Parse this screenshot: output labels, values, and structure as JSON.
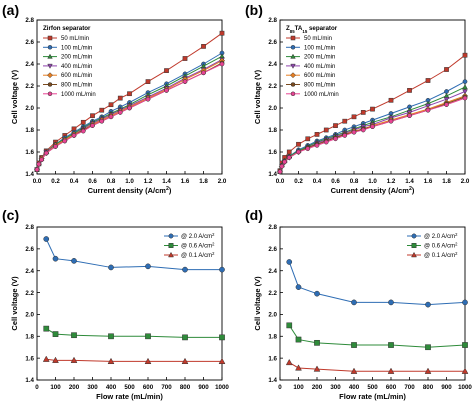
{
  "chart_data": [
    {
      "panel": "(a)",
      "type": "line",
      "ylabel": "Cell voltage (V)",
      "xlabel": "Current density (A/cm²)",
      "xlim": [
        0,
        2.0
      ],
      "ylim": [
        1.4,
        2.8
      ],
      "xticks": [
        "0.0",
        "0.2",
        "0.4",
        "0.6",
        "0.8",
        "1.0",
        "1.2",
        "1.4",
        "1.6",
        "1.8",
        "2.0"
      ],
      "yticks": [
        "1.4",
        "1.6",
        "1.8",
        "2.0",
        "2.2",
        "2.4",
        "2.6",
        "2.8"
      ],
      "legend_title": "Zirfon separator",
      "legend_placement": "top-left",
      "x": [
        0.0,
        0.02,
        0.05,
        0.1,
        0.2,
        0.3,
        0.4,
        0.5,
        0.6,
        0.7,
        0.8,
        0.9,
        1.0,
        1.2,
        1.4,
        1.6,
        1.8,
        2.0
      ],
      "series": [
        {
          "name": "50 mL/min",
          "color": "#c0392b",
          "marker": "square",
          "values": [
            1.44,
            1.5,
            1.55,
            1.61,
            1.69,
            1.75,
            1.81,
            1.87,
            1.93,
            1.98,
            2.03,
            2.09,
            2.13,
            2.24,
            2.34,
            2.45,
            2.56,
            2.68
          ]
        },
        {
          "name": "100 mL/min",
          "color": "#2e6db4",
          "marker": "circle",
          "values": [
            1.44,
            1.49,
            1.54,
            1.6,
            1.67,
            1.73,
            1.78,
            1.83,
            1.88,
            1.92,
            1.97,
            2.01,
            2.05,
            2.14,
            2.22,
            2.31,
            2.4,
            2.5
          ]
        },
        {
          "name": "200 mL/min",
          "color": "#2e8b3a",
          "marker": "triangle",
          "values": [
            1.44,
            1.49,
            1.54,
            1.6,
            1.67,
            1.72,
            1.77,
            1.82,
            1.87,
            1.91,
            1.95,
            1.99,
            2.03,
            2.12,
            2.2,
            2.29,
            2.38,
            2.47
          ]
        },
        {
          "name": "400 mL/min",
          "color": "#8e44ad",
          "marker": "triangle-down",
          "values": [
            1.44,
            1.49,
            1.54,
            1.6,
            1.66,
            1.71,
            1.76,
            1.81,
            1.86,
            1.9,
            1.94,
            1.98,
            2.02,
            2.1,
            2.18,
            2.27,
            2.35,
            2.44
          ]
        },
        {
          "name": "600 mL/min",
          "color": "#e67e22",
          "marker": "diamond",
          "values": [
            1.44,
            1.49,
            1.54,
            1.59,
            1.66,
            1.71,
            1.76,
            1.8,
            1.85,
            1.89,
            1.93,
            1.97,
            2.01,
            2.09,
            2.17,
            2.26,
            2.34,
            2.43
          ]
        },
        {
          "name": "800 mL/min",
          "color": "#7a4a1e",
          "marker": "circle",
          "values": [
            1.44,
            1.49,
            1.53,
            1.59,
            1.65,
            1.7,
            1.75,
            1.8,
            1.84,
            1.88,
            1.92,
            1.96,
            2.0,
            2.08,
            2.16,
            2.24,
            2.32,
            2.41
          ]
        },
        {
          "name": "1000 mL/min",
          "color": "#e84393",
          "marker": "circle",
          "values": [
            1.44,
            1.49,
            1.53,
            1.59,
            1.65,
            1.7,
            1.75,
            1.79,
            1.84,
            1.88,
            1.92,
            1.96,
            2.0,
            2.08,
            2.16,
            2.24,
            2.32,
            2.4
          ]
        }
      ]
    },
    {
      "panel": "(b)",
      "type": "line",
      "ylabel": "Cell voltage (V)",
      "xlabel": "Current density (A/cm²)",
      "xlim": [
        0,
        2.0
      ],
      "ylim": [
        1.4,
        2.8
      ],
      "xticks": [
        "0.0",
        "0.2",
        "0.4",
        "0.6",
        "0.8",
        "1.0",
        "1.2",
        "1.4",
        "1.6",
        "1.8",
        "2.0"
      ],
      "yticks": [
        "1.4",
        "1.6",
        "1.8",
        "2.0",
        "2.2",
        "2.4",
        "2.6",
        "2.8"
      ],
      "legend_title": "Z₈₅TA₁₅ separator",
      "legend_placement": "top-left",
      "x": [
        0.0,
        0.02,
        0.05,
        0.1,
        0.2,
        0.3,
        0.4,
        0.5,
        0.6,
        0.7,
        0.8,
        0.9,
        1.0,
        1.2,
        1.4,
        1.6,
        1.8,
        2.0
      ],
      "series": [
        {
          "name": "50 mL/min",
          "color": "#c0392b",
          "marker": "square",
          "values": [
            1.43,
            1.5,
            1.55,
            1.6,
            1.67,
            1.72,
            1.76,
            1.8,
            1.84,
            1.88,
            1.92,
            1.96,
            1.99,
            2.07,
            2.16,
            2.25,
            2.35,
            2.48
          ]
        },
        {
          "name": "100 mL/min",
          "color": "#2e6db4",
          "marker": "circle",
          "values": [
            1.42,
            1.48,
            1.52,
            1.56,
            1.62,
            1.66,
            1.7,
            1.73,
            1.76,
            1.8,
            1.83,
            1.86,
            1.89,
            1.95,
            2.01,
            2.07,
            2.15,
            2.24
          ]
        },
        {
          "name": "200 mL/min",
          "color": "#2e8b3a",
          "marker": "triangle",
          "values": [
            1.42,
            1.48,
            1.52,
            1.56,
            1.61,
            1.65,
            1.69,
            1.72,
            1.75,
            1.78,
            1.81,
            1.84,
            1.87,
            1.92,
            1.98,
            2.04,
            2.11,
            2.19
          ]
        },
        {
          "name": "400 mL/min",
          "color": "#8e44ad",
          "marker": "triangle-down",
          "values": [
            1.42,
            1.47,
            1.51,
            1.55,
            1.6,
            1.64,
            1.68,
            1.71,
            1.74,
            1.77,
            1.8,
            1.83,
            1.85,
            1.91,
            1.96,
            2.02,
            2.08,
            2.15
          ]
        },
        {
          "name": "600 mL/min",
          "color": "#e67e22",
          "marker": "diamond",
          "values": [
            1.42,
            1.47,
            1.51,
            1.55,
            1.6,
            1.64,
            1.67,
            1.7,
            1.73,
            1.76,
            1.79,
            1.81,
            1.84,
            1.89,
            1.94,
            1.99,
            2.05,
            2.11
          ]
        },
        {
          "name": "800 mL/min",
          "color": "#7a4a1e",
          "marker": "circle",
          "values": [
            1.42,
            1.47,
            1.51,
            1.55,
            1.6,
            1.64,
            1.67,
            1.7,
            1.73,
            1.76,
            1.78,
            1.81,
            1.83,
            1.88,
            1.93,
            1.98,
            2.04,
            2.1
          ]
        },
        {
          "name": "1000 mL/min",
          "color": "#e84393",
          "marker": "circle",
          "values": [
            1.42,
            1.47,
            1.51,
            1.55,
            1.6,
            1.63,
            1.66,
            1.69,
            1.72,
            1.75,
            1.78,
            1.8,
            1.83,
            1.88,
            1.93,
            1.98,
            2.03,
            2.09
          ]
        }
      ]
    },
    {
      "panel": "(c)",
      "type": "line",
      "ylabel": "Cell voltage (V)",
      "xlabel": "Flow rate (mL/min)",
      "xlim": [
        0,
        1000
      ],
      "ylim": [
        1.4,
        2.8
      ],
      "xticks": [
        "0",
        "100",
        "200",
        "300",
        "400",
        "500",
        "600",
        "700",
        "800",
        "900",
        "1000"
      ],
      "yticks": [
        "1.4",
        "1.6",
        "1.8",
        "2.0",
        "2.2",
        "2.4",
        "2.6",
        "2.8"
      ],
      "legend_placement": "top-right",
      "x": [
        50,
        100,
        200,
        400,
        600,
        800,
        1000
      ],
      "series": [
        {
          "name": "@ 2.0 A/cm²",
          "color": "#2e6db4",
          "marker": "circle",
          "values": [
            2.69,
            2.51,
            2.49,
            2.43,
            2.44,
            2.41,
            2.41
          ]
        },
        {
          "name": "@ 0.6 A/cm²",
          "color": "#2e8b3a",
          "marker": "square",
          "values": [
            1.87,
            1.82,
            1.81,
            1.8,
            1.8,
            1.79,
            1.79
          ]
        },
        {
          "name": "@ 0.1 A/cm²",
          "color": "#c0392b",
          "marker": "triangle",
          "values": [
            1.59,
            1.58,
            1.58,
            1.57,
            1.57,
            1.57,
            1.57
          ]
        }
      ]
    },
    {
      "panel": "(d)",
      "type": "line",
      "ylabel": "Cell voltage (V)",
      "xlabel": "Flow rate (mL/min)",
      "xlim": [
        0,
        1000
      ],
      "ylim": [
        1.4,
        2.8
      ],
      "xticks": [
        "0",
        "100",
        "200",
        "300",
        "400",
        "500",
        "600",
        "700",
        "800",
        "900",
        "1000"
      ],
      "yticks": [
        "1.4",
        "1.6",
        "1.8",
        "2.0",
        "2.2",
        "2.4",
        "2.6",
        "2.8"
      ],
      "legend_placement": "top-right",
      "x": [
        50,
        100,
        200,
        400,
        600,
        800,
        1000
      ],
      "series": [
        {
          "name": "@ 2.0 A/cm²",
          "color": "#2e6db4",
          "marker": "circle",
          "values": [
            2.48,
            2.25,
            2.19,
            2.11,
            2.11,
            2.09,
            2.11
          ]
        },
        {
          "name": "@ 0.6 A/cm²",
          "color": "#2e8b3a",
          "marker": "square",
          "values": [
            1.9,
            1.77,
            1.74,
            1.72,
            1.72,
            1.7,
            1.72
          ]
        },
        {
          "name": "@ 0.1 A/cm²",
          "color": "#c0392b",
          "marker": "triangle",
          "values": [
            1.56,
            1.51,
            1.5,
            1.48,
            1.48,
            1.48,
            1.48
          ]
        }
      ]
    }
  ]
}
